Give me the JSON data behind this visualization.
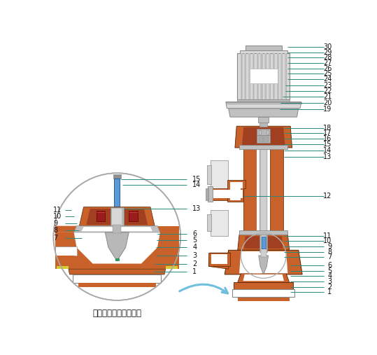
{
  "bg": "#FFFFFF",
  "rust": "#C8622A",
  "silver": "#B8B8B8",
  "silver_dark": "#909090",
  "blue": "#5B9BD5",
  "teal": "#2A8878",
  "yellow": "#D4CC30",
  "red": "#9B1C1C",
  "lgray": "#D8D8D8",
  "mgray": "#C0C0C0",
  "dgray": "#888888",
  "white": "#FFFFFF",
  "near_white": "#F0F0F0",
  "caption": "液下泵底部局部放大图",
  "right_labels": [
    "1",
    "2",
    "3",
    "4",
    "5",
    "6",
    "7",
    "8",
    "9",
    "10",
    "11",
    "12",
    "13",
    "14",
    "15",
    "16",
    "17",
    "18",
    "19",
    "20",
    "21",
    "22",
    "23",
    "24",
    "25",
    "26",
    "27",
    "28",
    "29",
    "30"
  ]
}
